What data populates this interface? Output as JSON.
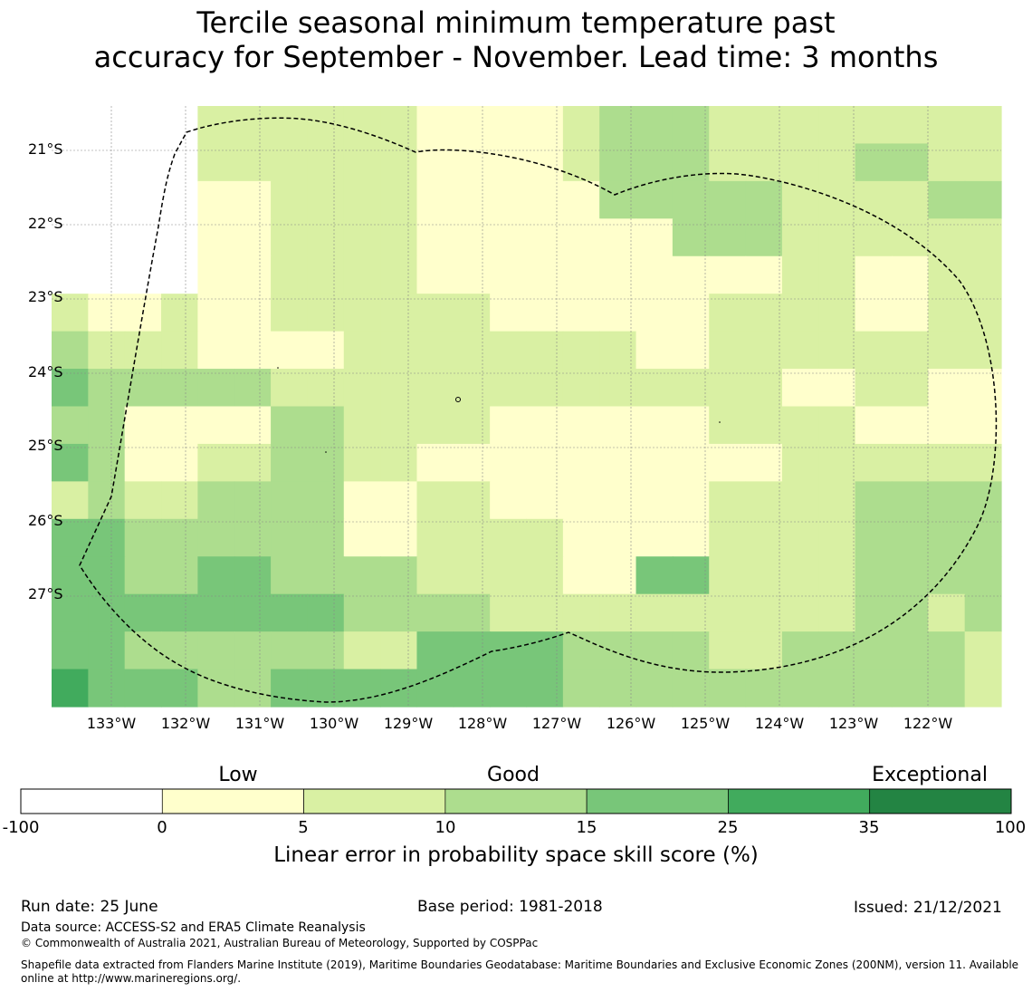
{
  "title": {
    "line1": "Tercile seasonal minimum temperature past",
    "line2": "accuracy for September - November. Lead time: 3 months"
  },
  "axes": {
    "lat_labels": [
      "21°S",
      "22°S",
      "23°S",
      "24°S",
      "25°S",
      "26°S",
      "27°S"
    ],
    "lon_labels": [
      "133°W",
      "132°W",
      "131°W",
      "130°W",
      "129°W",
      "128°W",
      "127°W",
      "126°W",
      "125°W",
      "124°W",
      "123°W",
      "122°W"
    ]
  },
  "colorbar": {
    "categories": [
      "Low",
      "Good",
      "Exceptional"
    ],
    "ticks": [
      "-100",
      "0",
      "5",
      "10",
      "15",
      "25",
      "35",
      "100"
    ],
    "colors": [
      "#ffffff",
      "#ffffcc",
      "#d9f0a3",
      "#addd8e",
      "#78c679",
      "#41ab5d",
      "#238443"
    ],
    "label": "Linear error in probability space skill score (%)"
  },
  "chart_data": {
    "type": "heatmap",
    "title": "Tercile seasonal minimum temperature past accuracy for September - November. Lead time: 3 months",
    "colorbar_label": "Linear error in probability space skill score (%)",
    "legend_bins": [
      -100,
      0,
      5,
      10,
      15,
      25,
      35,
      100
    ],
    "legend_colors": [
      "#ffffff",
      "#ffffcc",
      "#d9f0a3",
      "#addd8e",
      "#78c679",
      "#41ab5d",
      "#238443"
    ],
    "grid_lon_start": -133.8,
    "grid_lon_step": 0.5,
    "grid_lat_start": -20.4,
    "grid_lat_step": 0.5,
    "category_index_rows": [
      "........ABCCCCCCBBBBBB...B",
      "......................BBBB",
      "......................BBBB",
      "............................",
      "......................................................"
    ],
    "category_grid": [
      [
        -1,
        -1,
        -1,
        -1,
        -1,
        -1,
        1,
        1,
        1,
        1,
        1,
        1,
        1,
        1,
        2,
        2,
        1,
        1,
        1,
        1,
        1,
        1,
        1,
        1,
        1,
        1,
        1,
        1,
        1,
        1,
        1,
        1,
        1,
        1,
        1
      ],
      [
        -1,
        -1,
        -1,
        -1,
        -1,
        -1,
        -1,
        -1,
        -1,
        -1,
        -1,
        -1,
        -1,
        -1,
        -1,
        -1,
        -1,
        -1,
        -1,
        -1,
        -1,
        -1,
        -1,
        -1,
        -1,
        -1,
        -1,
        -1,
        -1,
        -1,
        -1,
        -1,
        -1,
        -1,
        -1
      ]
    ],
    "cells": [
      [
        -1,
        -1,
        -1,
        -1,
        1,
        1,
        1,
        1,
        1,
        1,
        0,
        0,
        0,
        0,
        1,
        2,
        2,
        2,
        1,
        1,
        1,
        1,
        1,
        1,
        1,
        1
      ],
      [
        -1,
        -1,
        -1,
        -1,
        1,
        1,
        1,
        1,
        1,
        1,
        0,
        0,
        0,
        0,
        1,
        2,
        2,
        2,
        1,
        1,
        1,
        1,
        2,
        2,
        1,
        1
      ],
      [
        -1,
        -1,
        -1,
        -1,
        0,
        0,
        1,
        1,
        1,
        1,
        0,
        0,
        0,
        0,
        0,
        2,
        2,
        2,
        2,
        2,
        1,
        1,
        1,
        1,
        2,
        2
      ],
      [
        -1,
        -1,
        -1,
        -1,
        0,
        0,
        1,
        1,
        1,
        1,
        0,
        0,
        0,
        0,
        0,
        0,
        0,
        2,
        2,
        2,
        1,
        1,
        1,
        1,
        1,
        1
      ],
      [
        -1,
        -1,
        -1,
        -1,
        0,
        0,
        1,
        1,
        1,
        1,
        0,
        0,
        0,
        0,
        0,
        0,
        0,
        0,
        0,
        0,
        1,
        1,
        0,
        0,
        1,
        1
      ],
      [
        1,
        0,
        0,
        1,
        0,
        0,
        1,
        1,
        1,
        1,
        1,
        1,
        0,
        0,
        0,
        0,
        0,
        0,
        1,
        1,
        1,
        1,
        0,
        0,
        1,
        1
      ],
      [
        2,
        1,
        1,
        1,
        0,
        0,
        0,
        0,
        1,
        1,
        1,
        1,
        1,
        1,
        1,
        1,
        0,
        0,
        1,
        1,
        1,
        1,
        1,
        1,
        1,
        1
      ],
      [
        3,
        2,
        2,
        2,
        2,
        2,
        1,
        1,
        1,
        1,
        1,
        1,
        1,
        1,
        1,
        1,
        1,
        1,
        1,
        1,
        0,
        0,
        1,
        1,
        0,
        0
      ],
      [
        2,
        2,
        0,
        0,
        0,
        0,
        2,
        2,
        1,
        1,
        1,
        1,
        0,
        0,
        0,
        0,
        0,
        0,
        1,
        1,
        1,
        1,
        0,
        0,
        0,
        0
      ],
      [
        3,
        2,
        0,
        0,
        1,
        1,
        2,
        2,
        1,
        1,
        0,
        0,
        0,
        0,
        0,
        0,
        0,
        0,
        0,
        0,
        1,
        1,
        1,
        1,
        1,
        1
      ],
      [
        1,
        2,
        1,
        1,
        2,
        2,
        2,
        2,
        0,
        0,
        1,
        1,
        0,
        0,
        0,
        0,
        0,
        0,
        1,
        1,
        1,
        1,
        2,
        2,
        2,
        2
      ],
      [
        3,
        3,
        2,
        2,
        2,
        2,
        2,
        2,
        0,
        0,
        1,
        1,
        1,
        1,
        0,
        0,
        0,
        0,
        1,
        1,
        1,
        1,
        2,
        2,
        2,
        2
      ],
      [
        3,
        3,
        2,
        2,
        3,
        3,
        2,
        2,
        2,
        2,
        1,
        1,
        1,
        1,
        0,
        0,
        3,
        3,
        1,
        1,
        1,
        1,
        2,
        2,
        2,
        2
      ],
      [
        3,
        3,
        3,
        3,
        3,
        3,
        3,
        3,
        2,
        2,
        2,
        2,
        1,
        1,
        1,
        1,
        1,
        1,
        1,
        1,
        1,
        1,
        2,
        2,
        1,
        2
      ],
      [
        3,
        3,
        2,
        2,
        2,
        2,
        2,
        2,
        1,
        1,
        3,
        3,
        3,
        3,
        2,
        2,
        2,
        2,
        1,
        1,
        2,
        2,
        2,
        2,
        2,
        1
      ],
      [
        4,
        3,
        3,
        3,
        2,
        2,
        3,
        3,
        3,
        3,
        3,
        3,
        3,
        3,
        2,
        2,
        2,
        2,
        2,
        2,
        2,
        2,
        2,
        2,
        2,
        1
      ]
    ]
  },
  "footer": {
    "run_date": "Run date: 25 June",
    "base_period": "Base period: 1981-2018",
    "issued": "Issued: 21/12/2021",
    "data_source": "Data source: ACCESS-S2 and ERA5 Climate Reanalysis",
    "copyright": "© Commonwealth of Australia 2021, Australian Bureau of Meteorology, Supported by COSPPac",
    "shapefile_line1": "Shapefile data extracted from Flanders Marine Institute (2019), Maritime Boundaries Geodatabase: Maritime Boundaries and Exclusive Economic Zones (200NM), version 11. Available",
    "shapefile_line2": "online at http://www.marineregions.org/."
  }
}
